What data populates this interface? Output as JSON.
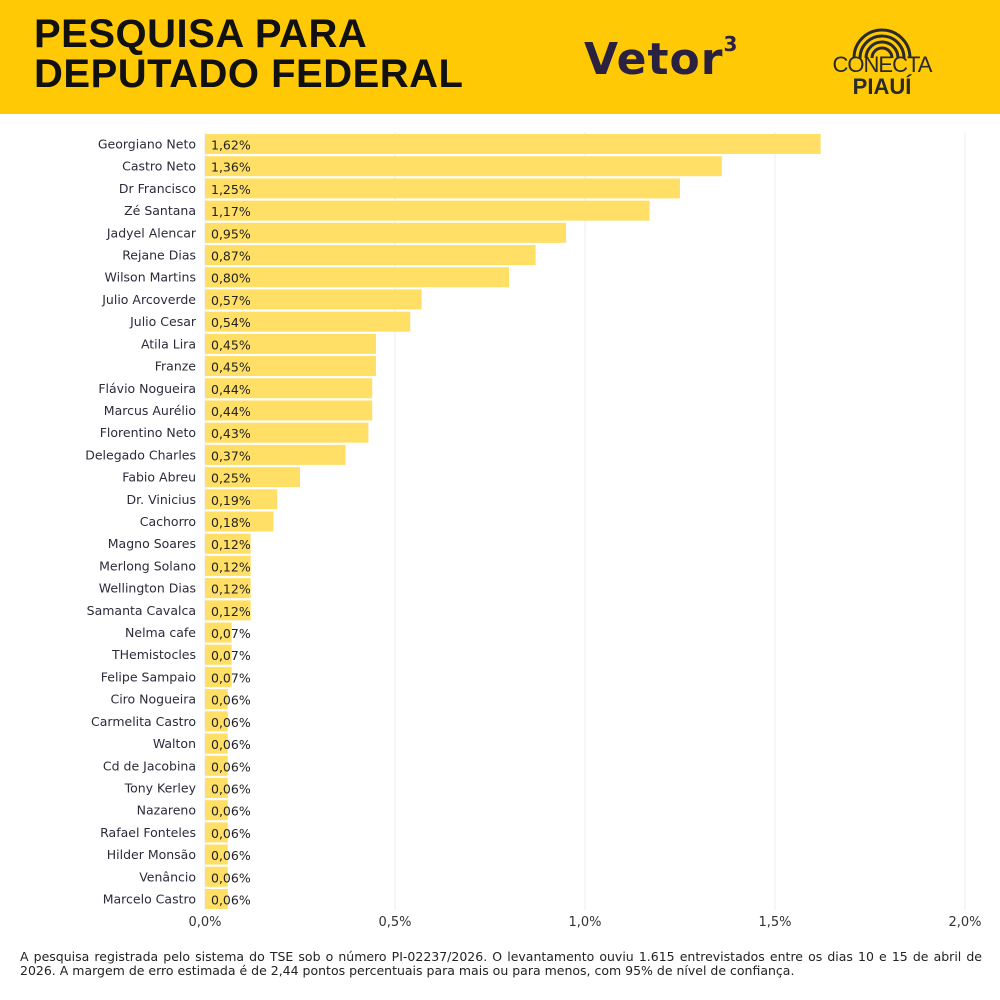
{
  "header": {
    "title_line1": "PESQUISA PARA",
    "title_line2": "DEPUTADO FEDERAL",
    "logo_vetor": "Vetor",
    "logo_vetor_sup": "3",
    "logo_conecta": "CONECTA",
    "logo_piaui": "PIAUÍ",
    "background_color": "#FFC906"
  },
  "chart_data": {
    "type": "bar",
    "orientation": "horizontal",
    "bar_color": "#FFDF66",
    "grid": true,
    "xlim": [
      0,
      2.0
    ],
    "x_ticks": [
      0,
      0.5,
      1.0,
      1.5,
      2.0
    ],
    "x_tick_labels": [
      "0,0%",
      "0,5%",
      "1,0%",
      "1,5%",
      "2,0%"
    ],
    "categories": [
      "Georgiano Neto",
      "Castro Neto",
      "Dr Francisco",
      "Zé Santana",
      "Jadyel Alencar",
      "Rejane Dias",
      "Wilson Martins",
      "Julio Arcoverde",
      "Julio Cesar",
      "Atila Lira",
      "Franze",
      "Flávio Nogueira",
      "Marcus Aurélio",
      "Florentino Neto",
      "Delegado Charles",
      "Fabio Abreu",
      "Dr. Vinicius",
      "Cachorro",
      "Magno Soares",
      "Merlong Solano",
      "Wellington Dias",
      "Samanta Cavalca",
      "Nelma cafe",
      "THemistocles",
      "Felipe Sampaio",
      "Ciro Nogueira",
      "Carmelita Castro",
      "Walton",
      "Cd de Jacobina",
      "Tony Kerley",
      "Nazareno",
      "Rafael Fonteles",
      "Hilder Monsão",
      "Venâncio",
      "Marcelo Castro"
    ],
    "values": [
      1.62,
      1.36,
      1.25,
      1.17,
      0.95,
      0.87,
      0.8,
      0.57,
      0.54,
      0.45,
      0.45,
      0.44,
      0.44,
      0.43,
      0.37,
      0.25,
      0.19,
      0.18,
      0.12,
      0.12,
      0.12,
      0.12,
      0.07,
      0.07,
      0.07,
      0.06,
      0.06,
      0.06,
      0.06,
      0.06,
      0.06,
      0.06,
      0.06,
      0.06,
      0.06
    ],
    "data_labels": [
      "1,62%",
      "1,36%",
      "1,25%",
      "1,17%",
      "0,95%",
      "0,87%",
      "0,80%",
      "0,57%",
      "0,54%",
      "0,45%",
      "0,45%",
      "0,44%",
      "0,44%",
      "0,43%",
      "0,37%",
      "0,25%",
      "0,19%",
      "0,18%",
      "0,12%",
      "0,12%",
      "0,12%",
      "0,12%",
      "0,07%",
      "0,07%",
      "0,07%",
      "0,06%",
      "0,06%",
      "0,06%",
      "0,06%",
      "0,06%",
      "0,06%",
      "0,06%",
      "0,06%",
      "0,06%",
      "0,06%"
    ]
  },
  "footer": {
    "note": "A pesquisa registrada pelo sistema do TSE sob o número PI-02237/2026. O levantamento ouviu 1.615 entrevistados entre os dias 10 e 15 de abril de 2026. A margem de erro estimada é de 2,44 pontos percentuais para mais ou para menos, com 95% de nível de confiança."
  }
}
